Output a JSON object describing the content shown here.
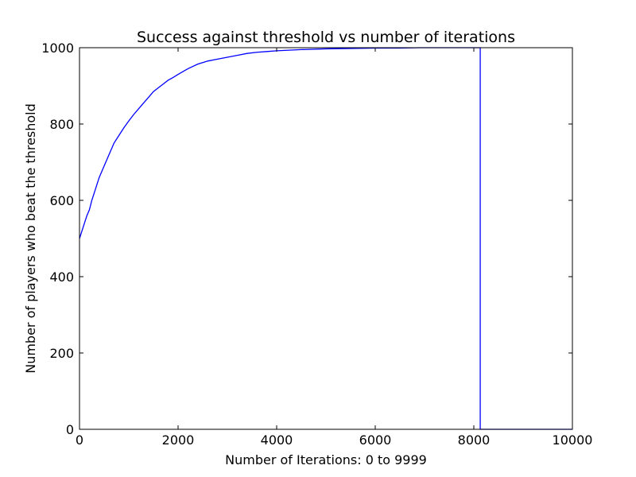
{
  "chart_data": {
    "type": "line",
    "title": "Success against threshold vs number of iterations",
    "xlabel": "Number of Iterations: 0 to 9999",
    "ylabel": "Number of players who beat the threshold",
    "xlim": [
      0,
      10000
    ],
    "ylim": [
      0,
      1000
    ],
    "xticks": [
      "0",
      "2000",
      "4000",
      "6000",
      "8000",
      "10000"
    ],
    "yticks": [
      "0",
      "200",
      "400",
      "600",
      "800",
      "1000"
    ],
    "grid": false,
    "legend": "none",
    "line_color": "#0000ff",
    "series": [
      {
        "x": [
          0,
          50,
          100,
          150,
          200,
          250,
          300,
          350,
          400,
          450,
          500,
          600,
          700,
          800,
          900,
          1000,
          1100,
          1200,
          1300,
          1400,
          1500,
          1600,
          1700,
          1800,
          1900,
          2000,
          2200,
          2400,
          2600,
          2800,
          3000,
          3200,
          3400,
          3600,
          3800,
          4000,
          4500,
          5000,
          5500,
          6000,
          6500,
          6900,
          7200,
          7500,
          8000,
          8100,
          8120,
          8130,
          8130,
          8140,
          9000,
          9999
        ],
        "y": [
          500,
          520,
          540,
          560,
          575,
          600,
          620,
          640,
          660,
          675,
          690,
          720,
          750,
          770,
          790,
          808,
          825,
          840,
          855,
          870,
          885,
          895,
          905,
          915,
          922,
          930,
          945,
          957,
          965,
          970,
          975,
          980,
          985,
          988,
          990,
          992,
          995,
          997,
          998,
          999,
          999,
          1000,
          1000,
          1000,
          1000,
          1000,
          1000,
          1000,
          0,
          0,
          0,
          0
        ]
      }
    ]
  }
}
